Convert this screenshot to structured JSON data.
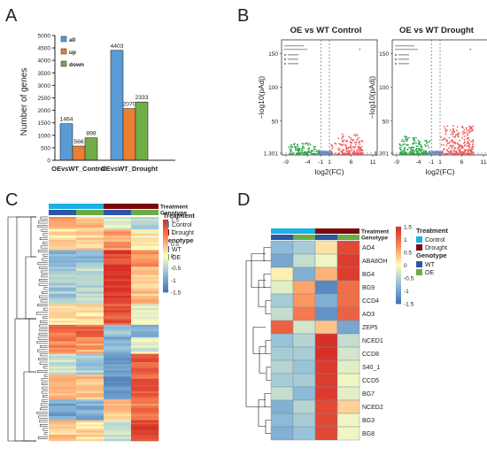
{
  "panels": {
    "A": "A",
    "B": "B",
    "C": "C",
    "D": "D"
  },
  "colors": {
    "all": "#5b9bd5",
    "up": "#ed7d31",
    "down": "#70ad47",
    "volcano_up": "#ee5a5a",
    "volcano_down": "#2ea84a",
    "volcano_ns": "#6a8fd0",
    "control": "#1bb0e6",
    "drought": "#7b0a0a",
    "wt": "#2e56a6",
    "oe": "#6aab45"
  },
  "chart_data": [
    {
      "type": "bar",
      "panel": "A",
      "categories": [
        "OEvsWT_Control",
        "OEvsWT_Drought"
      ],
      "series": [
        {
          "name": "all",
          "values": [
            1464,
            4403
          ]
        },
        {
          "name": "up",
          "values": [
            566,
            2070
          ]
        },
        {
          "name": "down",
          "values": [
            898,
            2333
          ]
        }
      ],
      "ylabel": "Number of genes",
      "ylim": [
        0,
        5000
      ],
      "yticks": [
        "0",
        "500",
        "1000",
        "1500",
        "2000",
        "2500",
        "3000",
        "3500",
        "4000",
        "4500",
        "5000"
      ],
      "legend_position": "top-left",
      "value_labels": [
        "1464",
        "566",
        "898",
        "4403",
        "2070",
        "2333"
      ]
    },
    {
      "type": "scatter",
      "panel": "B",
      "title": "OE vs WT Control",
      "xlabel": "log2(FC)",
      "ylabel": "−log10(pAdj)",
      "xticks": [
        "-9",
        "-4",
        "-1",
        "1",
        "6",
        "11"
      ],
      "yticks": [
        "150",
        "100",
        "50",
        "1.301"
      ],
      "xlim": [
        -10,
        12
      ],
      "ylim": [
        0,
        170
      ],
      "thresholds": {
        "x": [
          -1,
          1
        ],
        "y": 1.301
      }
    },
    {
      "type": "scatter",
      "panel": "B",
      "title": "OE vs WT Drought",
      "xlabel": "log2(FC)",
      "ylabel": "−log10(pAdj)",
      "xticks": [
        "-9",
        "-4",
        "-1",
        "1",
        "6",
        "11"
      ],
      "yticks": [
        "150",
        "100",
        "50",
        "1.301"
      ],
      "xlim": [
        -10,
        12
      ],
      "ylim": [
        0,
        170
      ],
      "thresholds": {
        "x": [
          -1,
          1
        ],
        "y": 1.301
      }
    },
    {
      "type": "heatmap",
      "panel": "C",
      "columns": [
        "WT",
        "OE",
        "WT",
        "OE"
      ],
      "treatment": [
        "Control",
        "Control",
        "Drought",
        "Drought"
      ],
      "annotation_labels": {
        "treatment": "Treatment",
        "genotype": "Genotype"
      },
      "legend": {
        "treatment_title": "Treatment",
        "treatment_items": [
          "Control",
          "Drought"
        ],
        "genotype_title": "Genotype",
        "genotype_items": [
          "WT",
          "OE"
        ]
      },
      "scale_ticks": [
        "1.5",
        "1",
        "0.5",
        "0",
        "-0.5",
        "-1",
        "-1.5"
      ],
      "range": [
        -1.5,
        1.5
      ],
      "row_blocks": [
        {
          "n": 6,
          "values": [
            0.6,
            0.5,
            -0.3,
            -0.6
          ]
        },
        {
          "n": 10,
          "values": [
            0.2,
            0.3,
            0.6,
            0.1
          ]
        },
        {
          "n": 8,
          "values": [
            -0.9,
            -0.8,
            1.3,
            0.7
          ]
        },
        {
          "n": 18,
          "values": [
            -0.6,
            -0.5,
            1.5,
            0.4
          ]
        },
        {
          "n": 10,
          "values": [
            0.1,
            0.2,
            1.2,
            -0.1
          ]
        },
        {
          "n": 6,
          "values": [
            1.0,
            1.1,
            -0.7,
            -0.9
          ]
        },
        {
          "n": 8,
          "values": [
            0.8,
            0.6,
            -0.9,
            -0.2
          ]
        },
        {
          "n": 10,
          "values": [
            -0.3,
            -0.6,
            -1.0,
            1.2
          ]
        },
        {
          "n": 12,
          "values": [
            0.5,
            0.4,
            -1.2,
            1.1
          ]
        },
        {
          "n": 10,
          "values": [
            -1.0,
            -0.9,
            0.3,
            0.9
          ]
        },
        {
          "n": 10,
          "values": [
            0.3,
            0.2,
            -0.4,
            1.3
          ]
        }
      ]
    },
    {
      "type": "heatmap",
      "panel": "D",
      "rows": [
        "AO4",
        "ABA8OH",
        "BG4",
        "BG9",
        "CCD4",
        "AO3",
        "ZEP5",
        "NCED1",
        "CCD8",
        "S40_1",
        "CCD5",
        "BG7",
        "NCED2",
        "BG3",
        "BG8"
      ],
      "columns": [
        "WT",
        "OE",
        "WT",
        "OE"
      ],
      "treatment": [
        "Control",
        "Control",
        "Drought",
        "Drought"
      ],
      "annotation_labels": {
        "treatment": "Treatment",
        "genotype": "Genotype"
      },
      "legend": {
        "treatment_title": "Treatment",
        "treatment_items": [
          "Control",
          "Drought"
        ],
        "genotype_title": "Genotype",
        "genotype_items": [
          "WT",
          "OE"
        ]
      },
      "scale_ticks": [
        "1.5",
        "1",
        "0.5",
        "0",
        "-0.5",
        "-1",
        "-1.5"
      ],
      "range": [
        -1.5,
        1.5
      ],
      "values": [
        [
          -0.8,
          -0.6,
          0.2,
          1.3
        ],
        [
          -1.0,
          -0.4,
          -0.1,
          1.4
        ],
        [
          0.1,
          -0.9,
          0.5,
          1.4
        ],
        [
          -0.2,
          0.6,
          -1.3,
          1.0
        ],
        [
          -0.6,
          0.7,
          -0.9,
          1.0
        ],
        [
          -0.4,
          0.9,
          -1.2,
          1.1
        ],
        [
          1.1,
          -0.3,
          0.4,
          -1.0
        ],
        [
          -0.7,
          -0.5,
          1.5,
          -0.4
        ],
        [
          -0.6,
          -0.6,
          1.5,
          -0.3
        ],
        [
          -0.5,
          -0.7,
          1.4,
          -0.2
        ],
        [
          -0.6,
          -0.6,
          1.4,
          -0.1
        ],
        [
          -0.4,
          -0.8,
          1.4,
          -0.2
        ],
        [
          -0.9,
          -0.5,
          1.3,
          0.3
        ],
        [
          -0.8,
          -0.6,
          1.3,
          -0.1
        ],
        [
          -0.9,
          -0.7,
          1.3,
          -0.1
        ]
      ]
    }
  ]
}
